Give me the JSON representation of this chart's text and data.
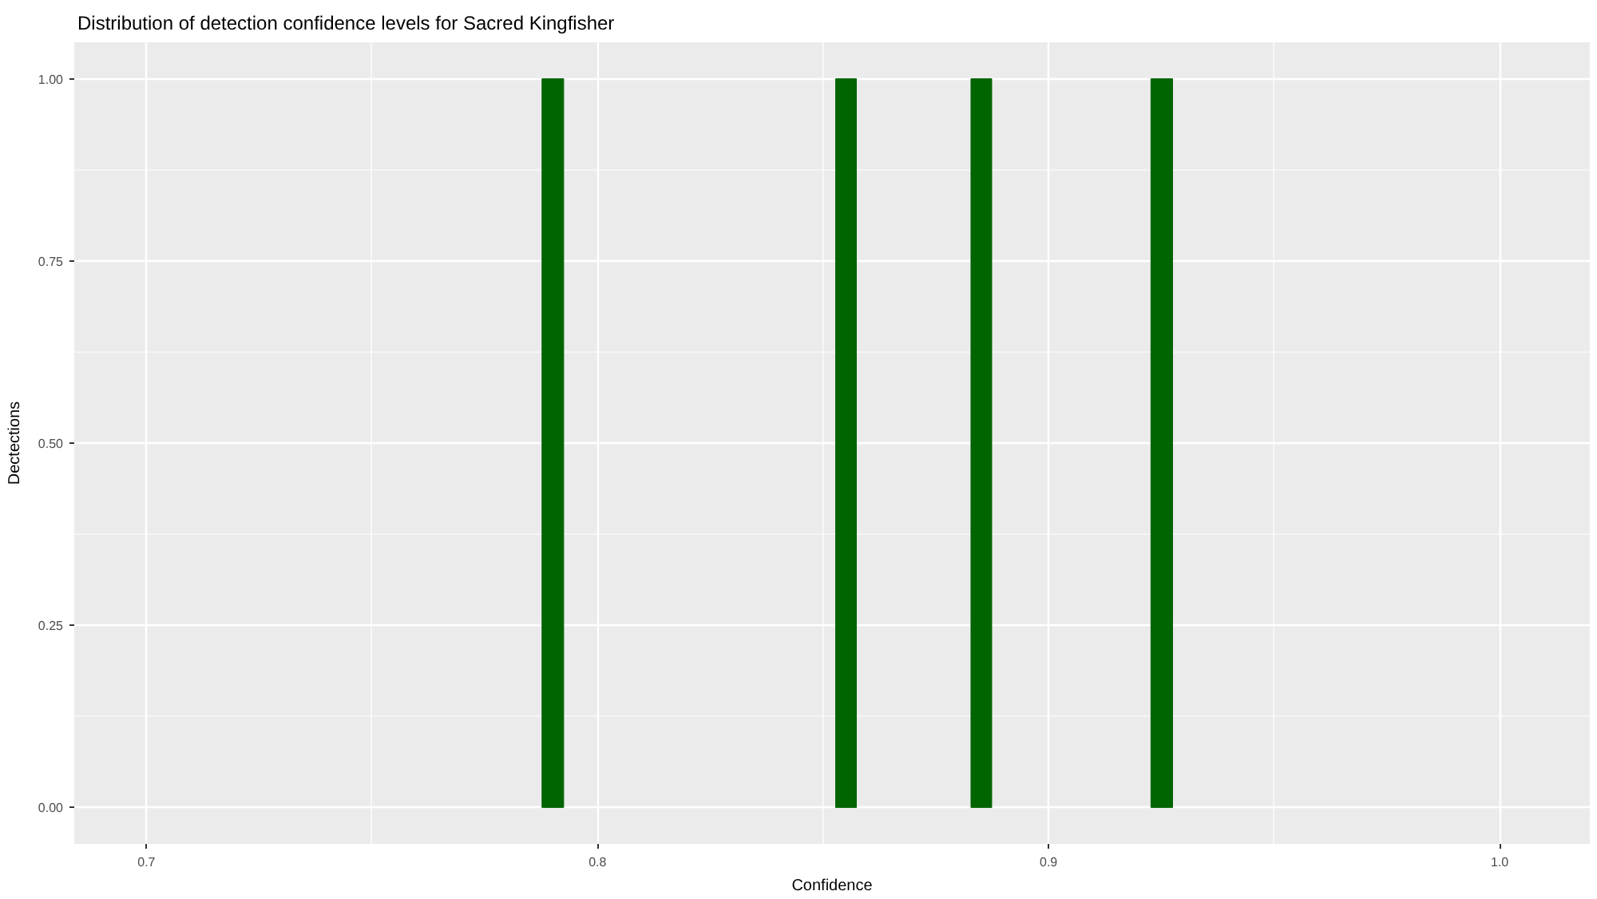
{
  "chart_data": {
    "type": "histogram",
    "title": "Distribution of detection confidence levels for Sacred Kingfisher",
    "xlabel": "Confidence",
    "ylabel": "Dectections",
    "bins": [
      0.7877,
      0.7925,
      0.8528,
      0.8574,
      0.8828,
      0.8874,
      0.9227,
      0.9275
    ],
    "values": [
      1,
      0,
      1,
      0,
      1,
      0,
      1
    ],
    "color": "#006400",
    "xlim": [
      0.684,
      1.02
    ],
    "xticks": [
      0.7,
      0.8,
      0.9,
      {
        "value": 1.0,
        "label": "1.0"
      }
    ],
    "ylim": [
      -0.05,
      1.05
    ],
    "yticks": [
      {
        "value": 0,
        "label": "0.00"
      },
      {
        "value": 0.25,
        "label": "0.25"
      },
      {
        "value": 0.5,
        "label": "0.50"
      },
      {
        "value": 0.75,
        "label": "0.75"
      },
      {
        "value": 1,
        "label": "1.00"
      }
    ],
    "grid": true
  }
}
